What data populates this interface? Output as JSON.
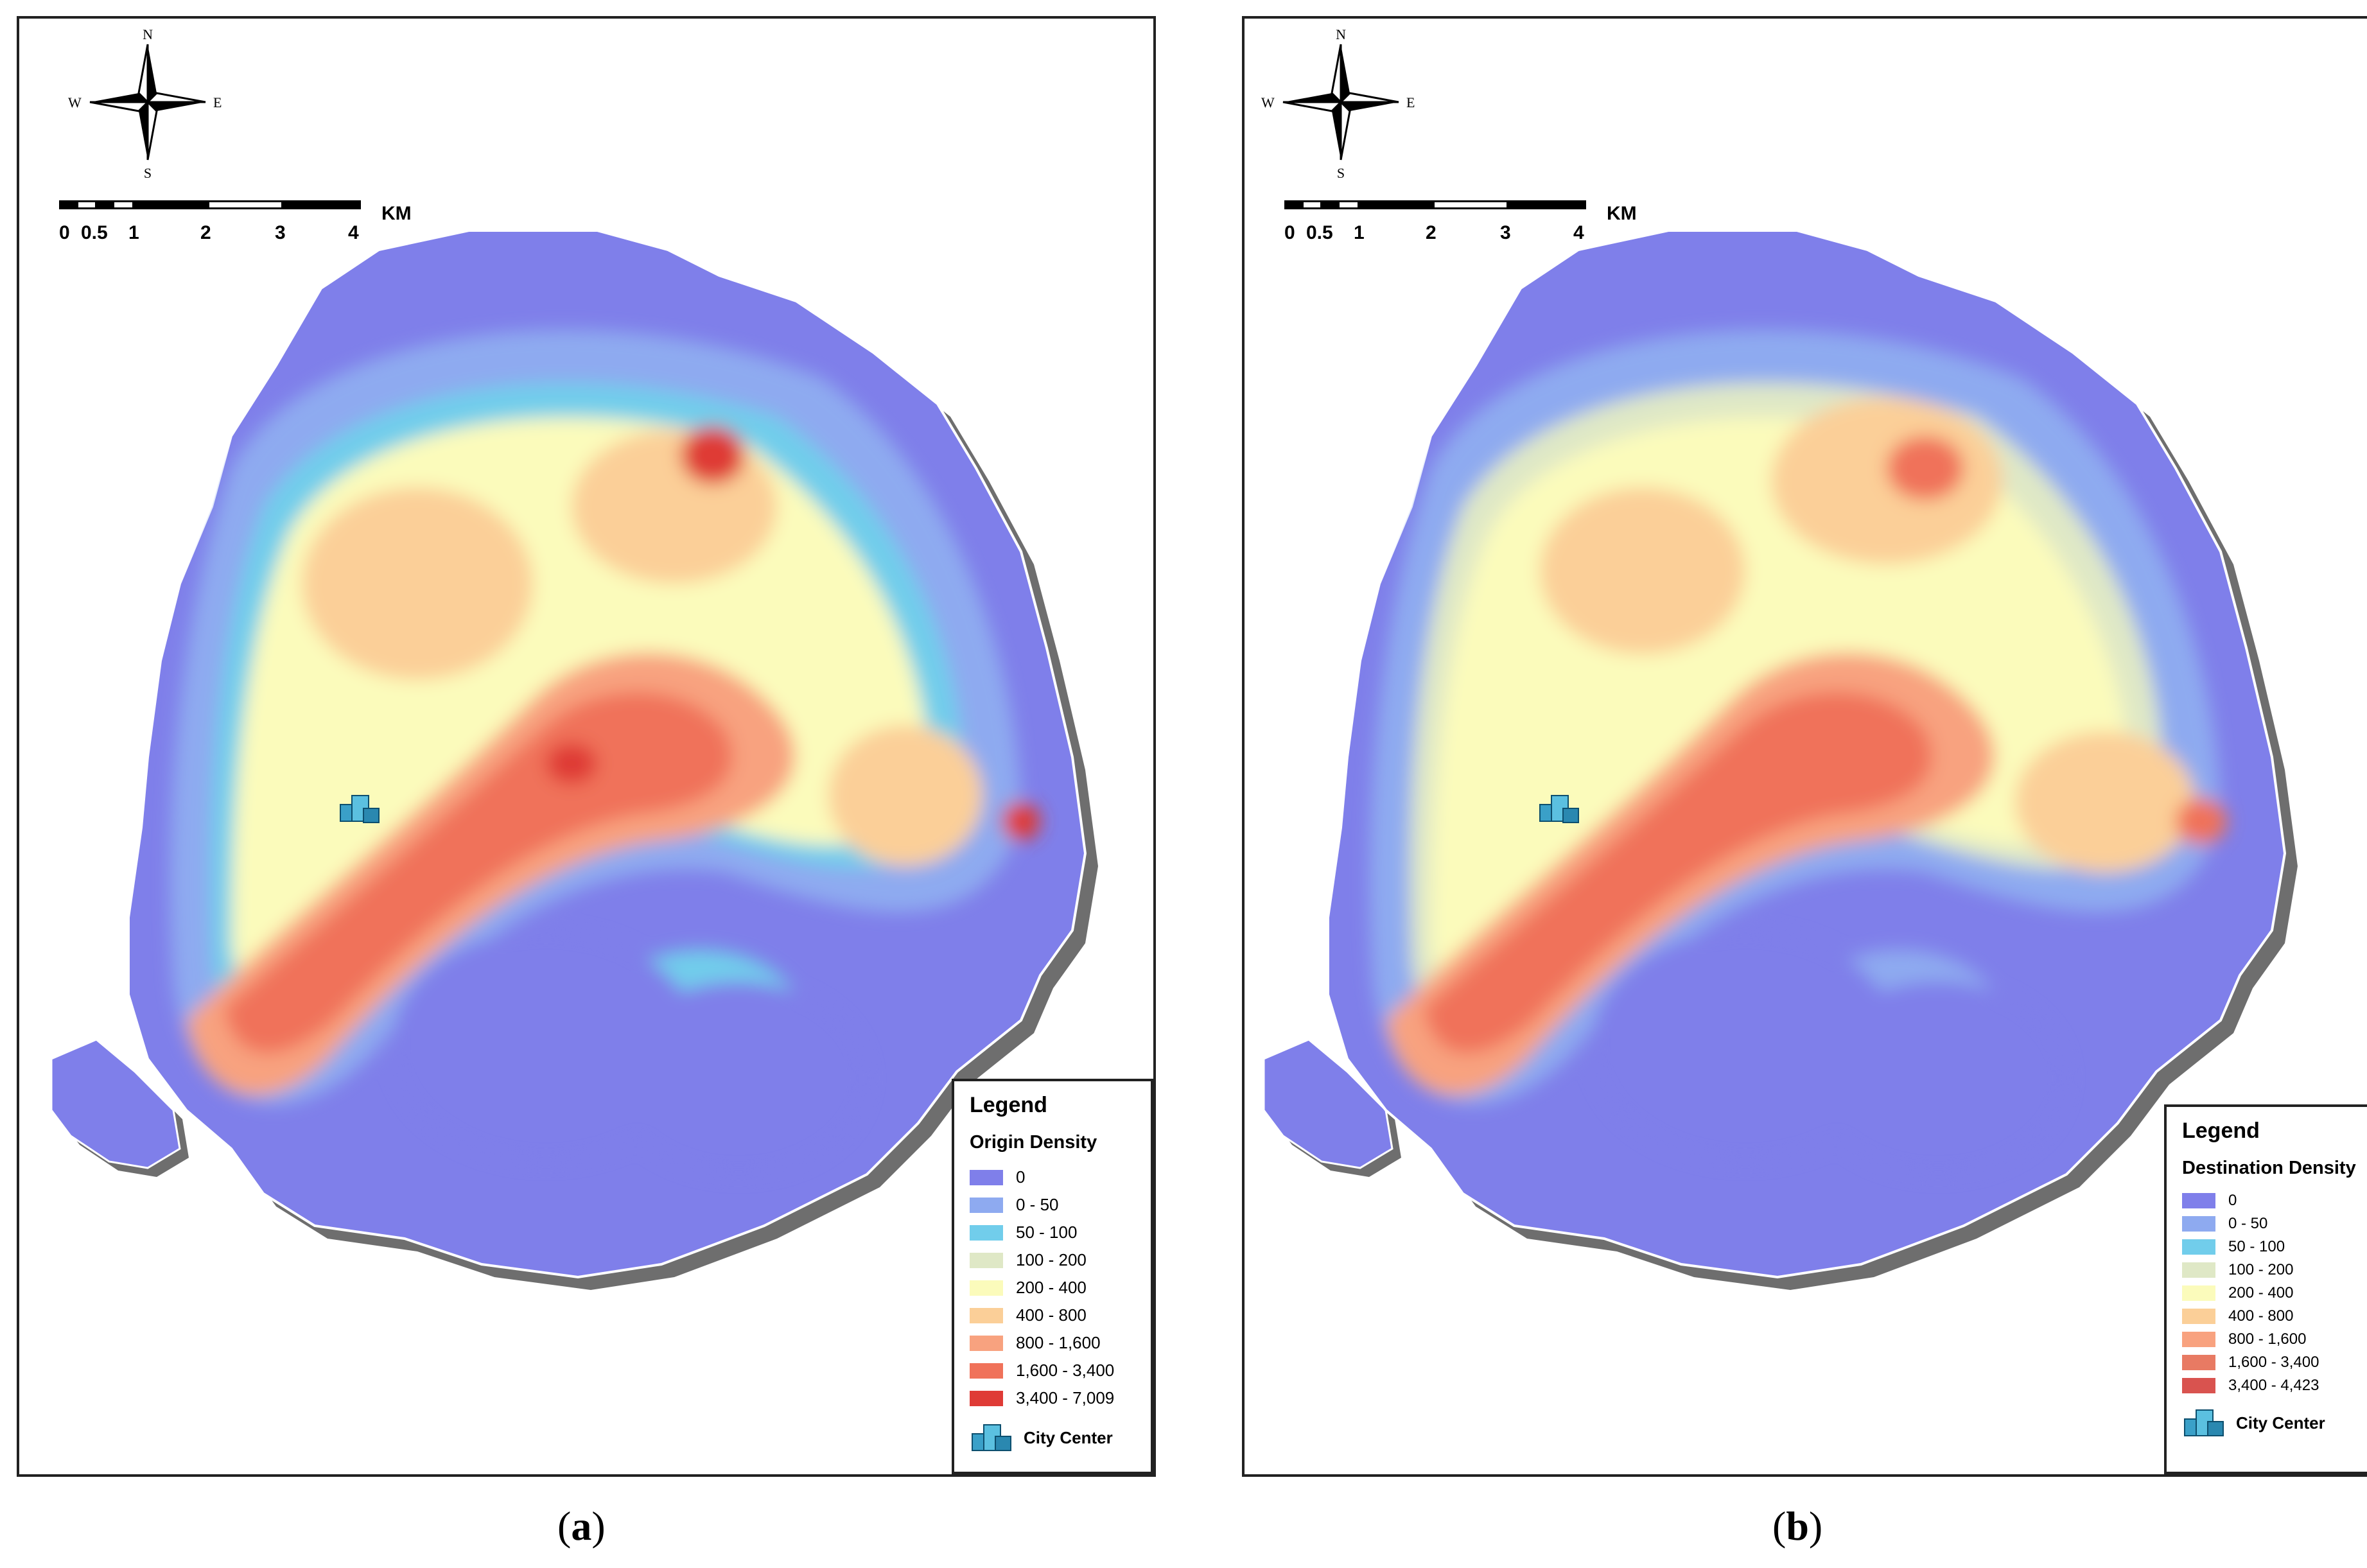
{
  "compass": {
    "n": "N",
    "s": "S",
    "e": "E",
    "w": "W"
  },
  "scalebar": {
    "ticks": [
      "0",
      "0.5",
      "1",
      "2",
      "3",
      "4"
    ],
    "unit": "KM"
  },
  "colors": {
    "0": "#7f7fea",
    "0-50": "#8eaaf0",
    "50-100": "#71cdeb",
    "100-200": "#dfe8c6",
    "200-400": "#fbfbbb",
    "400-800": "#fbcf98",
    "800-1600": "#f8a27f",
    "1600-3400": "#f0725a",
    "3400-max": "#df3b36",
    "ocean_shadow": "#555555",
    "outline": "#ffffff"
  },
  "panel_a": {
    "legend_title": "Legend",
    "legend_subtitle": "Origin Density",
    "classes": [
      "0",
      "0 - 50",
      "50 - 100",
      "100 - 200",
      "200 - 400",
      "400 - 800",
      "800 - 1,600",
      "1,600 - 3,400",
      "3,400 - 7,009"
    ],
    "city_center_label": "City Center",
    "caption_letter": "a"
  },
  "panel_b": {
    "legend_title": "Legend",
    "legend_subtitle": "Destination Density",
    "classes": [
      "0",
      "0 - 50",
      "50 - 100",
      "100 - 200",
      "200 - 400",
      "400 - 800",
      "800 - 1,600",
      "1,600 - 3,400",
      "3,400 - 4,423"
    ],
    "city_center_label": "City Center",
    "caption_letter": "b"
  }
}
